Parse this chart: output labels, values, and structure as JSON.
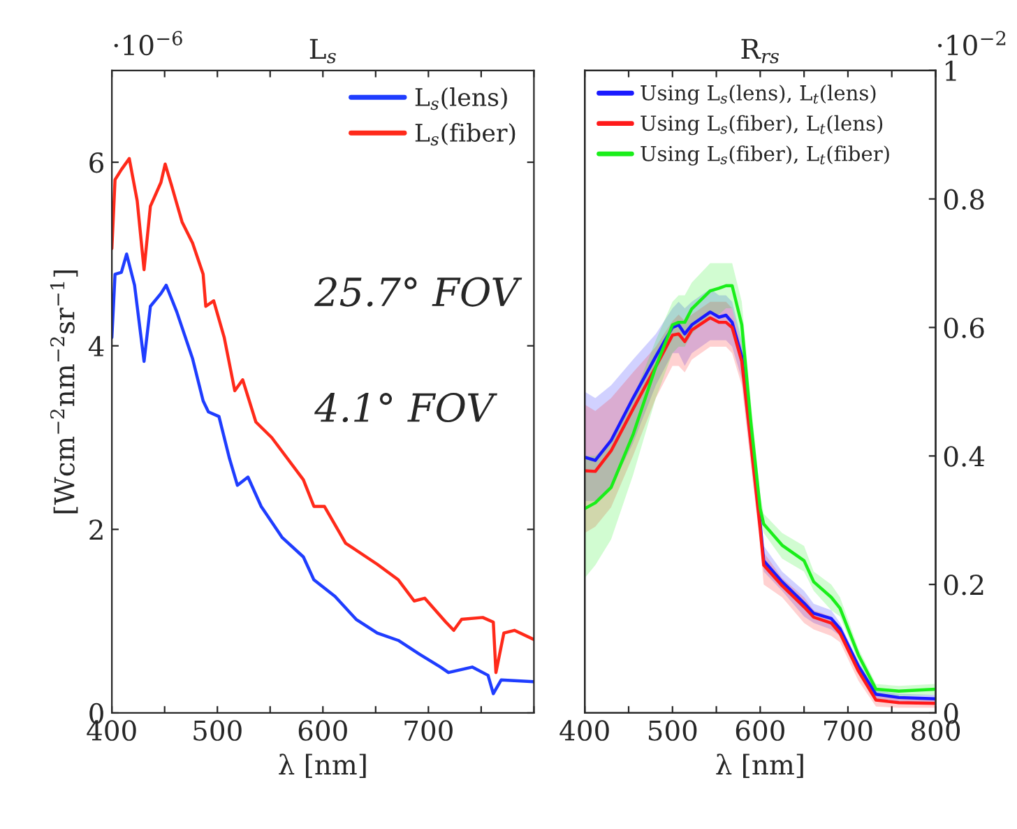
{
  "chart_data": [
    {
      "type": "line",
      "title": "L$_{s}$",
      "xlabel": "λ [nm]",
      "ylabel": "[Wcm$^{−2}$nm$^{−2}$sr$^{−1}$]",
      "xlim": [
        400,
        800
      ],
      "xticks": [
        400,
        {
          "value": 450,
          "label": null
        },
        500,
        {
          "value": 550,
          "label": null
        },
        600,
        {
          "value": 650,
          "label": null
        },
        700,
        {
          "value": 750,
          "label": null
        },
        {
          "value": 800,
          "label": null
        }
      ],
      "ylim": [
        0,
        7
      ],
      "yticks": [
        0,
        2,
        4,
        6
      ],
      "legend": "top right",
      "annotations": [
        "·10$^{−6}$",
        "25.7° FOV",
        "4.1° FOV"
      ],
      "series": [
        {
          "name": "L$_{s}$(lens)",
          "color": "#1f3dff",
          "x": [
            400,
            403,
            409,
            414,
            421.5,
            430.5,
            436.5,
            446.5,
            451.5,
            461.5,
            476.5,
            486.5,
            491.5,
            501.5,
            511.5,
            519,
            529,
            541.5,
            561.5,
            581.5,
            591.5,
            611.5,
            631.5,
            651.5,
            671.5,
            691.5,
            711.5,
            719,
            741.5,
            756.5,
            761.5,
            769,
            800
          ],
          "values": [
            4.09,
            4.78,
            4.8,
            5.0,
            4.66,
            3.83,
            4.43,
            4.57,
            4.66,
            4.37,
            3.86,
            3.4,
            3.28,
            3.23,
            2.77,
            2.48,
            2.57,
            2.25,
            1.91,
            1.7,
            1.45,
            1.27,
            1.02,
            0.87,
            0.79,
            0.64,
            0.5,
            0.44,
            0.5,
            0.41,
            0.21,
            0.36,
            0.34
          ]
        },
        {
          "name": "L$_{s}$(fiber)",
          "color": "#ff2a1a",
          "x": [
            400,
            403,
            409,
            416.5,
            424,
            430.5,
            436.5,
            446.5,
            450.5,
            456.5,
            466.5,
            476.5,
            486.5,
            489,
            496.5,
            506.5,
            516.5,
            524,
            536.5,
            551.5,
            581.5,
            591.5,
            601.5,
            621.5,
            651.5,
            671.5,
            686.5,
            696.5,
            716.5,
            724,
            731.5,
            751.5,
            761.5,
            764,
            771.5,
            781.5,
            800
          ],
          "values": [
            5.06,
            5.81,
            5.92,
            6.04,
            5.58,
            4.83,
            5.52,
            5.78,
            5.98,
            5.75,
            5.35,
            5.12,
            4.78,
            4.43,
            4.49,
            4.09,
            3.51,
            3.63,
            3.17,
            3.0,
            2.54,
            2.25,
            2.25,
            1.85,
            1.62,
            1.45,
            1.22,
            1.25,
            0.99,
            0.9,
            1.02,
            1.04,
            0.99,
            0.44,
            0.87,
            0.9,
            0.8
          ]
        }
      ]
    },
    {
      "type": "line",
      "title": "R$_{rs}$",
      "xlabel": "λ [nm]",
      "xlim": [
        400,
        800
      ],
      "xticks": [
        400,
        {
          "value": 450,
          "label": null
        },
        500,
        {
          "value": 550,
          "label": null
        },
        600,
        {
          "value": 650,
          "label": null
        },
        700,
        {
          "value": 750,
          "label": null
        },
        800
      ],
      "y2lim": [
        0,
        1
      ],
      "y2ticks": [
        0,
        0.2,
        0.4,
        0.6,
        0.8,
        1
      ],
      "legend": "top left",
      "annotations": [
        "·10$^{−2}$"
      ],
      "series": [
        {
          "name": "Using L$_{s}$(lens), L$_{t}$(lens)",
          "color": "#1a1aff",
          "axis": "y2",
          "x": [
            400,
            412,
            430,
            455,
            481,
            500,
            507,
            514,
            522,
            543,
            553,
            561,
            568,
            579,
            589,
            600,
            604,
            625,
            650,
            661,
            681,
            691,
            712,
            732,
            758,
            800
          ],
          "values": [
            0.398,
            0.393,
            0.424,
            0.49,
            0.555,
            0.6,
            0.604,
            0.59,
            0.604,
            0.624,
            0.616,
            0.619,
            0.608,
            0.555,
            0.433,
            0.294,
            0.237,
            0.204,
            0.171,
            0.155,
            0.147,
            0.131,
            0.073,
            0.029,
            0.024,
            0.022
          ],
          "upper": [
            0.5,
            0.49,
            0.51,
            0.55,
            0.59,
            0.63,
            0.64,
            0.63,
            0.64,
            0.66,
            0.65,
            0.65,
            0.64,
            0.58,
            0.46,
            0.32,
            0.26,
            0.22,
            0.19,
            0.17,
            0.16,
            0.14,
            0.08,
            0.035,
            0.03,
            0.028
          ],
          "lower": [
            0.33,
            0.33,
            0.35,
            0.42,
            0.51,
            0.56,
            0.56,
            0.54,
            0.56,
            0.58,
            0.58,
            0.58,
            0.57,
            0.52,
            0.4,
            0.27,
            0.22,
            0.19,
            0.15,
            0.14,
            0.13,
            0.12,
            0.06,
            0.022,
            0.018,
            0.016
          ]
        },
        {
          "name": "Using L$_{s}$(fiber), L$_{t}$(lens)",
          "color": "#ff1a1a",
          "axis": "y2",
          "x": [
            400,
            412,
            430,
            455,
            481,
            500,
            507,
            514,
            522,
            543,
            553,
            561,
            568,
            579,
            589,
            600,
            604,
            625,
            650,
            661,
            681,
            691,
            712,
            732,
            758,
            800
          ],
          "values": [
            0.377,
            0.376,
            0.408,
            0.473,
            0.539,
            0.588,
            0.59,
            0.578,
            0.596,
            0.615,
            0.608,
            0.608,
            0.6,
            0.547,
            0.424,
            0.286,
            0.23,
            0.198,
            0.165,
            0.149,
            0.14,
            0.124,
            0.065,
            0.02,
            0.016,
            0.015
          ],
          "upper": [
            0.48,
            0.47,
            0.49,
            0.53,
            0.57,
            0.61,
            0.62,
            0.61,
            0.62,
            0.64,
            0.64,
            0.64,
            0.63,
            0.57,
            0.45,
            0.31,
            0.25,
            0.21,
            0.18,
            0.16,
            0.15,
            0.13,
            0.07,
            0.03,
            0.025,
            0.022
          ],
          "lower": [
            0.28,
            0.29,
            0.32,
            0.4,
            0.49,
            0.54,
            0.54,
            0.53,
            0.55,
            0.57,
            0.57,
            0.57,
            0.56,
            0.51,
            0.39,
            0.26,
            0.2,
            0.18,
            0.14,
            0.13,
            0.12,
            0.11,
            0.05,
            0.01,
            0.008,
            0.008
          ]
        },
        {
          "name": "Using L$_{s}$(fiber), L$_{t}$(fiber)",
          "color": "#1aee1a",
          "axis": "y2",
          "x": [
            400,
            412,
            430,
            455,
            481,
            500,
            507,
            514,
            522,
            543,
            553,
            561,
            568,
            579,
            589,
            600,
            604,
            625,
            650,
            661,
            681,
            691,
            712,
            732,
            758,
            800
          ],
          "values": [
            0.318,
            0.327,
            0.351,
            0.433,
            0.539,
            0.604,
            0.608,
            0.608,
            0.629,
            0.657,
            0.661,
            0.665,
            0.665,
            0.604,
            0.457,
            0.318,
            0.294,
            0.261,
            0.237,
            0.204,
            0.18,
            0.163,
            0.09,
            0.037,
            0.034,
            0.037
          ],
          "upper": [
            0.4,
            0.4,
            0.42,
            0.49,
            0.58,
            0.64,
            0.65,
            0.65,
            0.67,
            0.7,
            0.7,
            0.7,
            0.7,
            0.64,
            0.49,
            0.34,
            0.31,
            0.28,
            0.26,
            0.22,
            0.2,
            0.18,
            0.1,
            0.045,
            0.042,
            0.045
          ],
          "lower": [
            0.21,
            0.23,
            0.27,
            0.37,
            0.49,
            0.56,
            0.57,
            0.57,
            0.59,
            0.62,
            0.62,
            0.63,
            0.63,
            0.57,
            0.42,
            0.3,
            0.28,
            0.24,
            0.22,
            0.19,
            0.16,
            0.15,
            0.08,
            0.028,
            0.026,
            0.028
          ]
        }
      ]
    }
  ]
}
